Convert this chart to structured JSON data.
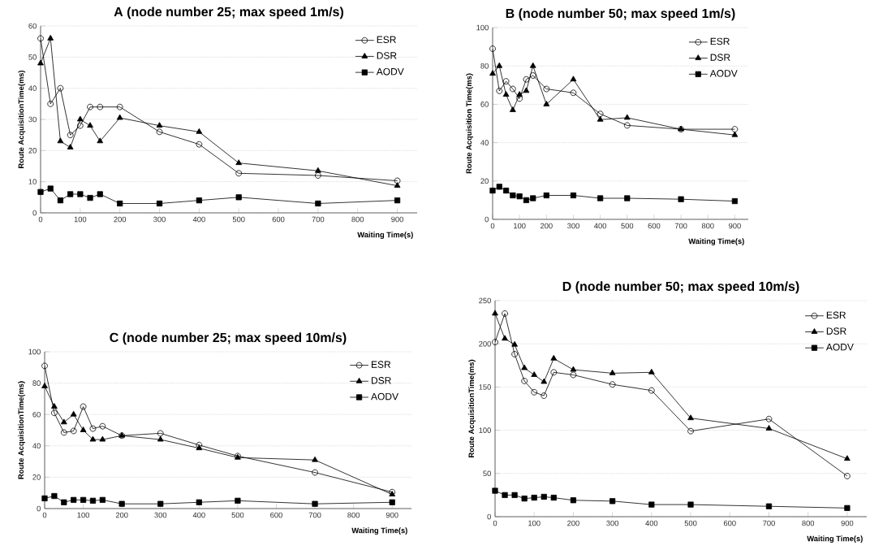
{
  "chart_data": [
    {
      "type": "line",
      "title": "A (node number 25; max speed 1m/s)",
      "xlabel": "Waiting Time(s)",
      "ylabel": "Route AcquisitionTime(ms)",
      "x": [
        0,
        25,
        50,
        75,
        100,
        125,
        150,
        200,
        300,
        400,
        500,
        700,
        900
      ],
      "xlim": [
        0,
        950
      ],
      "xticks": [
        0,
        100,
        200,
        300,
        400,
        500,
        600,
        700,
        800,
        900
      ],
      "ylim": [
        0,
        60
      ],
      "yticks": [
        0,
        10,
        20,
        30,
        40,
        50,
        60
      ],
      "grid": "y",
      "legend": "top right",
      "series": [
        {
          "name": "ESR",
          "color": "#000000",
          "marker": "circle",
          "values": [
            56,
            35,
            40,
            25,
            28,
            34,
            34,
            34,
            26,
            22,
            12.7,
            12,
            10.3
          ]
        },
        {
          "name": "DSR",
          "color": "#000000",
          "marker": "triangle",
          "values": [
            48,
            56,
            23,
            21,
            30,
            28,
            23,
            30.5,
            28,
            26,
            16,
            13.5,
            8.7
          ]
        },
        {
          "name": "AODV",
          "color": "#000000",
          "marker": "square",
          "values": [
            6.7,
            7.8,
            4,
            6,
            6,
            4.8,
            6,
            3,
            3,
            4,
            5,
            3,
            4
          ]
        }
      ]
    },
    {
      "type": "line",
      "title": "B (node number 50; max speed 1m/s)",
      "xlabel": "Waiting Time(s)",
      "ylabel": "Route Acquisition Time(ms)",
      "x": [
        0,
        25,
        50,
        75,
        100,
        125,
        150,
        200,
        300,
        400,
        500,
        700,
        900
      ],
      "xlim": [
        0,
        950
      ],
      "xticks": [
        0,
        100,
        200,
        300,
        400,
        500,
        600,
        700,
        800,
        900
      ],
      "ylim": [
        0,
        100
      ],
      "yticks": [
        0,
        20,
        40,
        60,
        80,
        100
      ],
      "grid": "y",
      "legend": "top right",
      "series": [
        {
          "name": "ESR",
          "color": "#000000",
          "marker": "circle",
          "values": [
            89,
            67,
            72,
            68,
            63,
            73,
            75,
            68,
            66,
            55,
            49,
            47,
            47
          ]
        },
        {
          "name": "DSR",
          "color": "#000000",
          "marker": "triangle",
          "values": [
            76,
            80,
            65,
            57,
            65,
            67,
            80,
            60,
            73,
            52,
            53,
            47,
            44
          ]
        },
        {
          "name": "AODV",
          "color": "#000000",
          "marker": "square",
          "values": [
            15,
            17,
            15,
            12.5,
            12,
            10,
            11,
            12.5,
            12.5,
            11,
            11,
            10.5,
            9.5
          ]
        }
      ]
    },
    {
      "type": "line",
      "title": "C (node number 25; max speed 10m/s)",
      "xlabel": "Waiting Time(s)",
      "ylabel": "Route AcquisitionTime(ms)",
      "x": [
        0,
        25,
        50,
        75,
        100,
        125,
        150,
        200,
        300,
        400,
        500,
        700,
        900
      ],
      "xlim": [
        0,
        950
      ],
      "xticks": [
        0,
        100,
        200,
        300,
        400,
        500,
        600,
        700,
        800,
        900
      ],
      "ylim": [
        0,
        100
      ],
      "yticks": [
        0,
        20,
        40,
        60,
        80,
        100
      ],
      "grid": "y",
      "legend": "top right",
      "series": [
        {
          "name": "ESR",
          "color": "#000000",
          "marker": "circle",
          "values": [
            91,
            61,
            48.5,
            49.5,
            65,
            51,
            52.5,
            46.5,
            48,
            40.5,
            33.5,
            23,
            10.5
          ]
        },
        {
          "name": "DSR",
          "color": "#000000",
          "marker": "triangle",
          "values": [
            78,
            65,
            55,
            60,
            50,
            44,
            44,
            46.5,
            44,
            38.5,
            32.5,
            31,
            9
          ]
        },
        {
          "name": "AODV",
          "color": "#000000",
          "marker": "square",
          "values": [
            6.5,
            8,
            4,
            5.5,
            5.5,
            5,
            5.5,
            3,
            3,
            4,
            5,
            3,
            4
          ]
        }
      ]
    },
    {
      "type": "line",
      "title": "D (node number 50; max speed 10m/s)",
      "xlabel": "Waiting Time(s)",
      "ylabel": "Route AcquisitionTime(ms)",
      "x": [
        0,
        25,
        50,
        75,
        100,
        125,
        150,
        200,
        300,
        400,
        500,
        700,
        900
      ],
      "xlim": [
        0,
        950
      ],
      "xticks": [
        0,
        100,
        200,
        300,
        400,
        500,
        600,
        700,
        800,
        900
      ],
      "ylim": [
        0,
        250
      ],
      "yticks": [
        0,
        50,
        100,
        150,
        200,
        250
      ],
      "grid": "y",
      "legend": "top right",
      "series": [
        {
          "name": "ESR",
          "color": "#000000",
          "marker": "circle",
          "values": [
            202,
            235,
            188,
            157,
            144,
            140,
            167,
            164,
            153,
            146,
            99,
            113,
            47
          ]
        },
        {
          "name": "DSR",
          "color": "#000000",
          "marker": "triangle",
          "values": [
            235,
            206,
            199,
            172,
            164,
            156,
            183,
            170,
            166,
            167,
            114,
            102,
            67
          ]
        },
        {
          "name": "AODV",
          "color": "#000000",
          "marker": "square",
          "values": [
            30,
            25,
            25,
            21,
            22,
            23,
            22,
            19,
            18,
            14,
            14,
            12,
            10
          ]
        }
      ]
    }
  ]
}
